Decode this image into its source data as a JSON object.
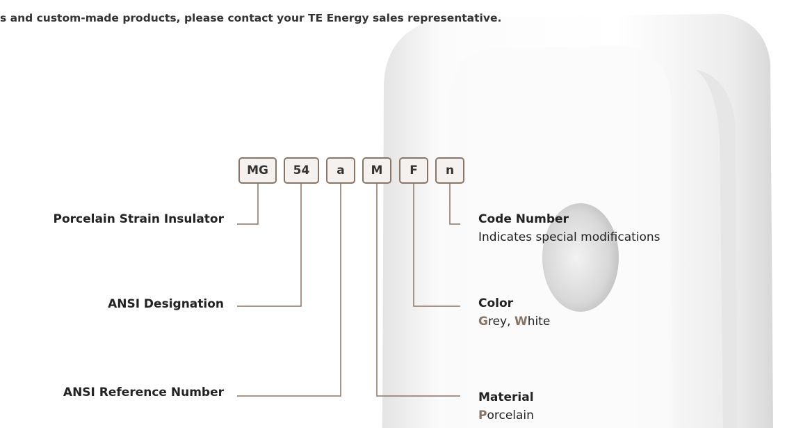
{
  "header": {
    "text": "s and custom-made products, please contact your TE Energy sales representative."
  },
  "code": {
    "boxes": [
      "MG",
      "54",
      "a",
      "M",
      "F",
      "n"
    ]
  },
  "left_labels": [
    "Porcelain Strain Insulator",
    "ANSI Designation",
    "ANSI Reference Number"
  ],
  "right_labels": [
    {
      "title": "Code Number",
      "parts": [
        "Indicates special modifications"
      ]
    },
    {
      "title": "Color",
      "parts": [
        "G",
        "rey, ",
        "W",
        "hite"
      ]
    },
    {
      "title": "Material",
      "parts": [
        "P",
        "orcelain"
      ]
    }
  ]
}
